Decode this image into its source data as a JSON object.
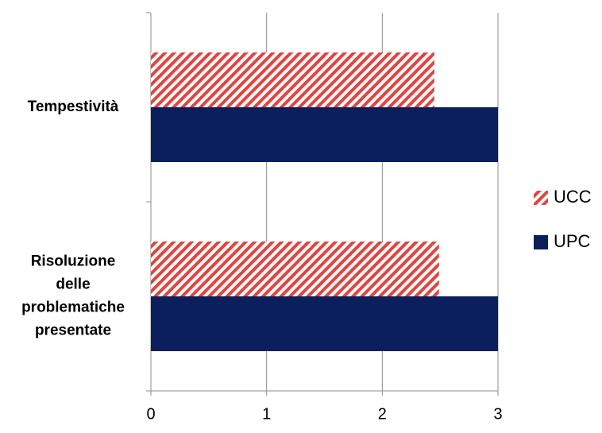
{
  "chart_data": {
    "type": "bar",
    "orientation": "horizontal",
    "categories": [
      "Tempestività",
      "Risoluzione delle problematiche presentate"
    ],
    "category_label_lines": [
      [
        "Tempestività"
      ],
      [
        "Risoluzione",
        "delle",
        "problematiche",
        "presentate"
      ]
    ],
    "series": [
      {
        "name": "UCC",
        "values": [
          2.45,
          2.49
        ],
        "color": "#e8413c",
        "pattern": "diagonal-stripes"
      },
      {
        "name": "UPC",
        "values": [
          3,
          3
        ],
        "color": "#0b1f5c",
        "pattern": "solid"
      }
    ],
    "x_ticks": [
      0,
      1,
      2,
      3
    ],
    "xlim": [
      0,
      3
    ],
    "grid": "vertical",
    "legend_position": "right"
  }
}
